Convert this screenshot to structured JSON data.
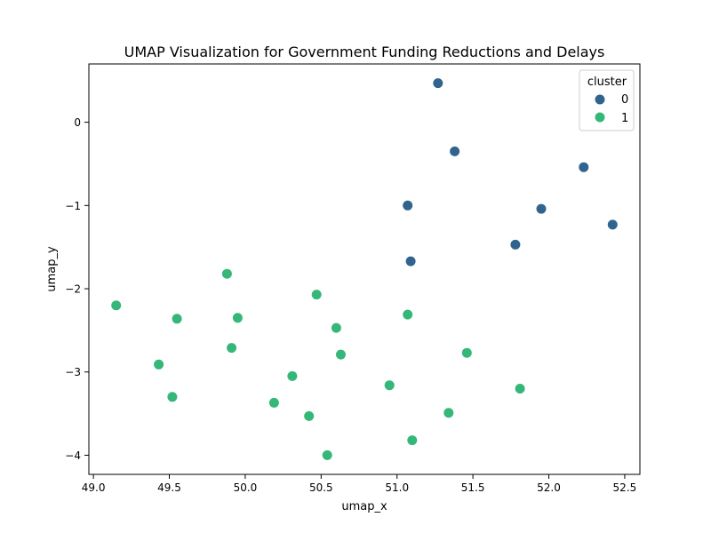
{
  "chart_data": {
    "type": "scatter",
    "title": "UMAP Visualization for Government Funding Reductions and Delays",
    "xlabel": "umap_x",
    "ylabel": "umap_y",
    "xlim": [
      48.97,
      52.6
    ],
    "ylim": [
      -4.23,
      0.7
    ],
    "xticks": [
      49.0,
      49.5,
      50.0,
      50.5,
      51.0,
      51.5,
      52.0,
      52.5
    ],
    "xtick_labels": [
      "49.0",
      "49.5",
      "50.0",
      "50.5",
      "51.0",
      "51.5",
      "52.0",
      "52.5"
    ],
    "yticks": [
      0,
      -1,
      -2,
      -3,
      -4
    ],
    "ytick_labels": [
      "0",
      "−1",
      "−2",
      "−3",
      "−4"
    ],
    "grid": false,
    "legend": {
      "title": "cluster",
      "placement": "top-right"
    },
    "series": [
      {
        "name": "0",
        "color": "#30648e",
        "points": [
          [
            51.27,
            0.47
          ],
          [
            51.38,
            -0.35
          ],
          [
            52.23,
            -0.54
          ],
          [
            51.07,
            -1.0
          ],
          [
            51.95,
            -1.04
          ],
          [
            52.42,
            -1.23
          ],
          [
            51.78,
            -1.47
          ],
          [
            51.09,
            -1.67
          ]
        ]
      },
      {
        "name": "1",
        "color": "#35b779",
        "points": [
          [
            49.88,
            -1.82
          ],
          [
            50.47,
            -2.07
          ],
          [
            49.15,
            -2.2
          ],
          [
            49.55,
            -2.36
          ],
          [
            49.95,
            -2.35
          ],
          [
            51.07,
            -2.31
          ],
          [
            50.6,
            -2.47
          ],
          [
            49.91,
            -2.71
          ],
          [
            50.63,
            -2.79
          ],
          [
            51.46,
            -2.77
          ],
          [
            49.43,
            -2.91
          ],
          [
            50.31,
            -3.05
          ],
          [
            50.95,
            -3.16
          ],
          [
            51.81,
            -3.2
          ],
          [
            49.52,
            -3.3
          ],
          [
            50.19,
            -3.37
          ],
          [
            50.42,
            -3.53
          ],
          [
            51.34,
            -3.49
          ],
          [
            51.1,
            -3.82
          ],
          [
            50.54,
            -4.0
          ]
        ]
      }
    ]
  }
}
